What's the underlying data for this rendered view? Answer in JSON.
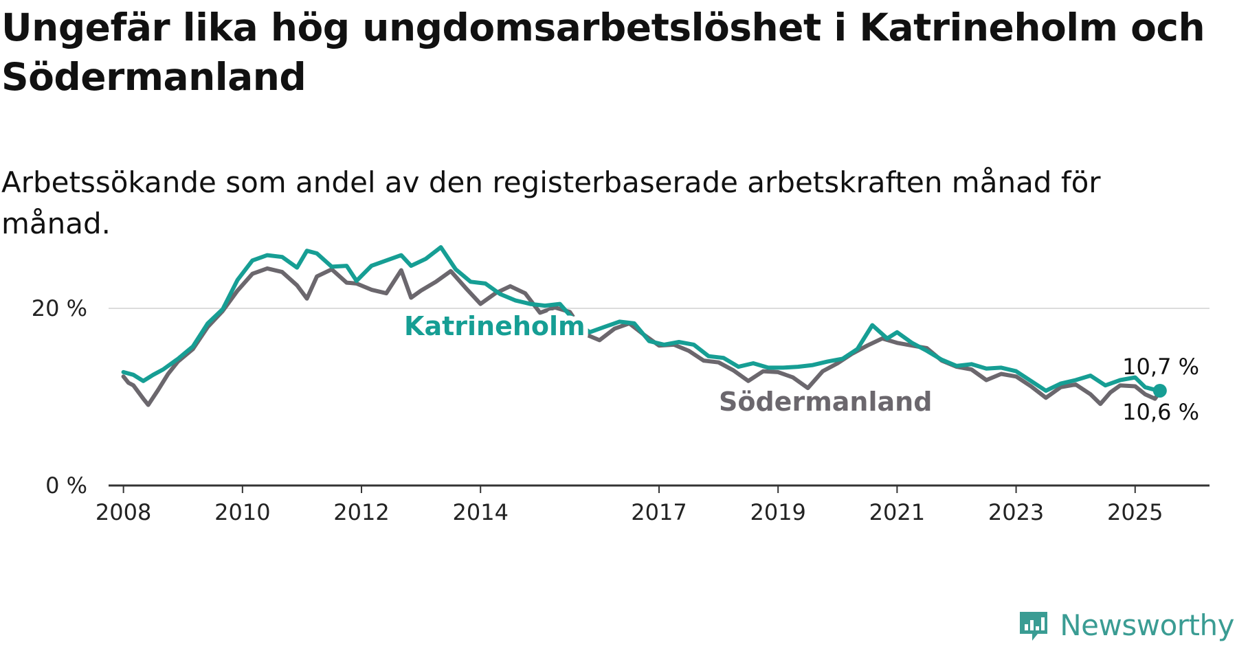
{
  "title": "Ungefär lika hög ungdomsarbetslöshet i Katrineholm och Södermanland",
  "subtitle": "Arbetssökande som andel av den registerbaserade arbetskraften månad för månad.",
  "brand": {
    "name": "Newsworthy",
    "icon": "newsworthy-logo-icon",
    "color": "#3a9c93"
  },
  "chart_data": {
    "type": "line",
    "x_type": "date",
    "ylim": [
      0,
      30
    ],
    "yticks": [
      {
        "value": 0,
        "label": "0 %"
      },
      {
        "value": 20,
        "label": "20 %"
      }
    ],
    "xticks": [
      "2008",
      "2010",
      "2012",
      "2014",
      "2017",
      "2019",
      "2021",
      "2023",
      "2025"
    ],
    "xlim": [
      "2007-10",
      "2026-04"
    ],
    "grid": "horizontal",
    "series": [
      {
        "name": "Södermanland",
        "color": "#6b676d",
        "end_label": "10,6 %",
        "points": [
          [
            "2008-01",
            12.3
          ],
          [
            "2008-02",
            11.6
          ],
          [
            "2008-03",
            11.3
          ],
          [
            "2008-05",
            9.8
          ],
          [
            "2008-06",
            9.1
          ],
          [
            "2008-08",
            10.8
          ],
          [
            "2008-10",
            12.6
          ],
          [
            "2008-12",
            14.0
          ],
          [
            "2009-03",
            15.4
          ],
          [
            "2009-06",
            17.9
          ],
          [
            "2009-09",
            19.7
          ],
          [
            "2009-12",
            22.0
          ],
          [
            "2010-03",
            23.9
          ],
          [
            "2010-06",
            24.5
          ],
          [
            "2010-09",
            24.1
          ],
          [
            "2010-12",
            22.6
          ],
          [
            "2011-02",
            21.1
          ],
          [
            "2011-04",
            23.6
          ],
          [
            "2011-07",
            24.4
          ],
          [
            "2011-10",
            22.9
          ],
          [
            "2011-12",
            22.8
          ],
          [
            "2012-03",
            22.1
          ],
          [
            "2012-06",
            21.7
          ],
          [
            "2012-09",
            24.3
          ],
          [
            "2012-11",
            21.2
          ],
          [
            "2013-01",
            22.0
          ],
          [
            "2013-04",
            23.0
          ],
          [
            "2013-07",
            24.2
          ],
          [
            "2013-10",
            22.3
          ],
          [
            "2014-01",
            20.5
          ],
          [
            "2014-04",
            21.7
          ],
          [
            "2014-07",
            22.5
          ],
          [
            "2014-10",
            21.7
          ],
          [
            "2015-01",
            19.5
          ],
          [
            "2015-04",
            20.1
          ],
          [
            "2015-07",
            19.6
          ],
          [
            "2015-10",
            17.1
          ],
          [
            "2016-01",
            16.4
          ],
          [
            "2016-04",
            17.7
          ],
          [
            "2016-07",
            18.3
          ],
          [
            "2016-10",
            17.0
          ],
          [
            "2017-01",
            15.8
          ],
          [
            "2017-04",
            15.9
          ],
          [
            "2017-07",
            15.2
          ],
          [
            "2017-10",
            14.1
          ],
          [
            "2018-01",
            13.9
          ],
          [
            "2018-04",
            13.0
          ],
          [
            "2018-07",
            11.8
          ],
          [
            "2018-10",
            12.9
          ],
          [
            "2019-01",
            12.8
          ],
          [
            "2019-04",
            12.2
          ],
          [
            "2019-07",
            11.0
          ],
          [
            "2019-10",
            12.9
          ],
          [
            "2020-01",
            13.8
          ],
          [
            "2020-04",
            14.9
          ],
          [
            "2020-07",
            15.8
          ],
          [
            "2020-10",
            16.6
          ],
          [
            "2021-01",
            16.1
          ],
          [
            "2021-04",
            15.8
          ],
          [
            "2021-07",
            15.5
          ],
          [
            "2021-10",
            14.1
          ],
          [
            "2022-01",
            13.4
          ],
          [
            "2022-04",
            13.1
          ],
          [
            "2022-07",
            11.9
          ],
          [
            "2022-10",
            12.6
          ],
          [
            "2023-01",
            12.3
          ],
          [
            "2023-04",
            11.2
          ],
          [
            "2023-07",
            9.9
          ],
          [
            "2023-10",
            11.1
          ],
          [
            "2024-01",
            11.4
          ],
          [
            "2024-04",
            10.3
          ],
          [
            "2024-06",
            9.2
          ],
          [
            "2024-08",
            10.5
          ],
          [
            "2024-10",
            11.3
          ],
          [
            "2025-01",
            11.2
          ],
          [
            "2025-03",
            10.3
          ],
          [
            "2025-05",
            9.8
          ],
          [
            "2025-06",
            10.6
          ]
        ]
      },
      {
        "name": "Katrineholm",
        "color": "#169e94",
        "end_label": "10,7 %",
        "points": [
          [
            "2008-01",
            12.8
          ],
          [
            "2008-03",
            12.5
          ],
          [
            "2008-05",
            11.8
          ],
          [
            "2008-07",
            12.5
          ],
          [
            "2008-09",
            13.1
          ],
          [
            "2008-12",
            14.3
          ],
          [
            "2009-03",
            15.7
          ],
          [
            "2009-06",
            18.3
          ],
          [
            "2009-09",
            19.9
          ],
          [
            "2009-12",
            23.2
          ],
          [
            "2010-03",
            25.4
          ],
          [
            "2010-06",
            26.0
          ],
          [
            "2010-09",
            25.8
          ],
          [
            "2010-12",
            24.6
          ],
          [
            "2011-02",
            26.5
          ],
          [
            "2011-04",
            26.2
          ],
          [
            "2011-07",
            24.7
          ],
          [
            "2011-10",
            24.8
          ],
          [
            "2011-12",
            23.1
          ],
          [
            "2012-03",
            24.8
          ],
          [
            "2012-06",
            25.4
          ],
          [
            "2012-09",
            26.0
          ],
          [
            "2012-11",
            24.8
          ],
          [
            "2013-02",
            25.6
          ],
          [
            "2013-05",
            26.9
          ],
          [
            "2013-08",
            24.4
          ],
          [
            "2013-11",
            23.0
          ],
          [
            "2014-02",
            22.8
          ],
          [
            "2014-05",
            21.6
          ],
          [
            "2014-08",
            20.9
          ],
          [
            "2014-11",
            20.5
          ],
          [
            "2015-02",
            20.3
          ],
          [
            "2015-05",
            20.5
          ],
          [
            "2015-08",
            18.6
          ],
          [
            "2015-11",
            17.3
          ],
          [
            "2016-02",
            17.9
          ],
          [
            "2016-05",
            18.5
          ],
          [
            "2016-08",
            18.3
          ],
          [
            "2016-11",
            16.3
          ],
          [
            "2017-02",
            15.9
          ],
          [
            "2017-05",
            16.2
          ],
          [
            "2017-08",
            15.9
          ],
          [
            "2017-11",
            14.6
          ],
          [
            "2018-02",
            14.4
          ],
          [
            "2018-05",
            13.4
          ],
          [
            "2018-08",
            13.8
          ],
          [
            "2018-11",
            13.3
          ],
          [
            "2019-02",
            13.3
          ],
          [
            "2019-05",
            13.4
          ],
          [
            "2019-08",
            13.6
          ],
          [
            "2019-11",
            14.0
          ],
          [
            "2020-02",
            14.3
          ],
          [
            "2020-05",
            15.4
          ],
          [
            "2020-08",
            18.1
          ],
          [
            "2020-11",
            16.6
          ],
          [
            "2021-01",
            17.3
          ],
          [
            "2021-04",
            16.1
          ],
          [
            "2021-07",
            15.2
          ],
          [
            "2021-10",
            14.2
          ],
          [
            "2022-01",
            13.5
          ],
          [
            "2022-04",
            13.7
          ],
          [
            "2022-07",
            13.2
          ],
          [
            "2022-10",
            13.3
          ],
          [
            "2023-01",
            12.9
          ],
          [
            "2023-04",
            11.8
          ],
          [
            "2023-07",
            10.7
          ],
          [
            "2023-10",
            11.5
          ],
          [
            "2024-01",
            11.9
          ],
          [
            "2024-04",
            12.4
          ],
          [
            "2024-07",
            11.3
          ],
          [
            "2024-10",
            11.9
          ],
          [
            "2025-01",
            12.2
          ],
          [
            "2025-03",
            11.1
          ],
          [
            "2025-05",
            10.8
          ],
          [
            "2025-06",
            10.7
          ]
        ]
      }
    ]
  }
}
